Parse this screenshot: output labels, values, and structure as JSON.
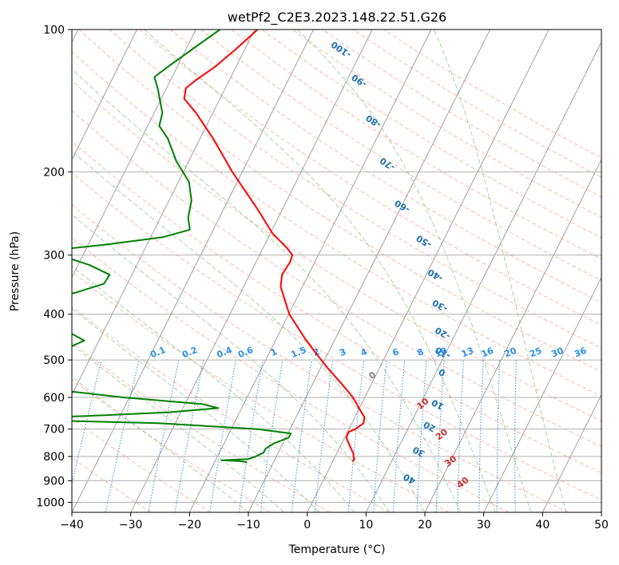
{
  "chart_data": {
    "type": "line",
    "subtype": "skew-t log-p diagram",
    "title": "wetPf2_C2E3.2023.148.22.51.G26",
    "xlabel": "Temperature (°C)",
    "ylabel": "Pressure (hPa)",
    "xlim": [
      -40,
      50
    ],
    "ylim": [
      1050,
      100
    ],
    "y_scale": "log",
    "grid": true,
    "x_ticks": [
      "−40",
      "−30",
      "−20",
      "−10",
      "0",
      "10",
      "20",
      "30",
      "40",
      "50"
    ],
    "y_ticks": [
      "100",
      "200",
      "300",
      "400",
      "500",
      "600",
      "700",
      "800",
      "900",
      "1000"
    ],
    "x_tick_values": [
      -40,
      -30,
      -20,
      -10,
      0,
      10,
      20,
      30,
      40,
      50
    ],
    "y_tick_values": [
      100,
      200,
      300,
      400,
      500,
      600,
      700,
      800,
      900,
      1000
    ],
    "colors": {
      "temperature": "#ff0000",
      "dewpoint": "#008000",
      "isotherm": "#a0a0a0",
      "dry_adiabat": "#fa8060",
      "moist_adiabat": "#60b060",
      "mixing_ratio": "#2f8fe0",
      "mixing_label": "#2b8fe8",
      "dry_label": "#1f6fb0",
      "moist_label": "#d03030",
      "moist_label_zero": "#808080",
      "lcl_curve": "#d2b48c"
    },
    "dry_adiabat_labels": [
      "-100",
      "-90",
      "-80",
      "-70",
      "-60",
      "-50",
      "-40",
      "-30",
      "-20",
      "-10",
      "0",
      "10",
      "20",
      "30",
      "40"
    ],
    "dry_adiabat_label_points": [
      {
        "t": -33.6,
        "p": 110
      },
      {
        "t": -27.9,
        "p": 128
      },
      {
        "t": -22.0,
        "p": 156
      },
      {
        "t": -16.0,
        "p": 192
      },
      {
        "t": -9.9,
        "p": 236
      },
      {
        "t": -3.2,
        "p": 280
      },
      {
        "t": 1.6,
        "p": 330
      },
      {
        "t": 5.0,
        "p": 383
      },
      {
        "t": 7.8,
        "p": 438
      },
      {
        "t": 9.5,
        "p": 482
      },
      {
        "t": 11.0,
        "p": 530
      },
      {
        "t": 13.0,
        "p": 620
      },
      {
        "t": 13.5,
        "p": 690
      },
      {
        "t": 13.8,
        "p": 780
      },
      {
        "t": 14.5,
        "p": 890
      }
    ],
    "moist_adiabat_labels": [
      "0",
      "10",
      "20",
      "30",
      "40"
    ],
    "moist_adiabat_label_points": [
      {
        "t": -0.5,
        "p": 540
      },
      {
        "t": 10.5,
        "p": 620
      },
      {
        "t": 16.3,
        "p": 720
      },
      {
        "t": 20.1,
        "p": 820
      },
      {
        "t": 24.0,
        "p": 910
      }
    ],
    "mixing_ratio_labels": [
      "0.1",
      "0.2",
      "0.4",
      "0.6",
      "1",
      "1.5",
      "2",
      "3",
      "4",
      "6",
      "8",
      "10",
      "13",
      "16",
      "20",
      "25",
      "30",
      "36"
    ],
    "mixing_ratio_label_temps": [
      -38.3,
      -32.9,
      -27.0,
      -23.4,
      -18.6,
      -14.4,
      -11.4,
      -6.9,
      -3.3,
      2.1,
      6.3,
      9.8,
      14.3,
      17.7,
      21.6,
      25.9,
      29.6,
      33.5
    ],
    "mixing_ratio_label_pressure": 500,
    "series": [
      {
        "name": "Temperature",
        "color": "#ff0000",
        "points": [
          [
            100,
            -49.5
          ],
          [
            110,
            -51.5
          ],
          [
            120,
            -53.6
          ],
          [
            128,
            -55.7
          ],
          [
            133,
            -56.7
          ],
          [
            140,
            -56.1
          ],
          [
            150,
            -52.9
          ],
          [
            170,
            -47.8
          ],
          [
            200,
            -41.7
          ],
          [
            240,
            -34.2
          ],
          [
            270,
            -29.6
          ],
          [
            290,
            -25.9
          ],
          [
            300,
            -24.4
          ],
          [
            310,
            -24.2
          ],
          [
            330,
            -24.5
          ],
          [
            350,
            -23.7
          ],
          [
            400,
            -19.9
          ],
          [
            450,
            -15.2
          ],
          [
            480,
            -12.4
          ],
          [
            520,
            -8.8
          ],
          [
            560,
            -5.2
          ],
          [
            600,
            -2.0
          ],
          [
            640,
            0.4
          ],
          [
            660,
            1.6
          ],
          [
            680,
            2.0
          ],
          [
            700,
            1.1
          ],
          [
            710,
            0.2
          ],
          [
            730,
            0.3
          ],
          [
            760,
            1.6
          ],
          [
            790,
            2.9
          ],
          [
            800,
            3.1
          ],
          [
            810,
            3.5
          ],
          [
            820,
            3.4
          ]
        ]
      },
      {
        "name": "Dewpoint",
        "color": "#008000",
        "points": [
          [
            100,
            -55.9
          ],
          [
            110,
            -58.9
          ],
          [
            120,
            -61.6
          ],
          [
            126,
            -63.0
          ],
          [
            133,
            -61.5
          ],
          [
            150,
            -58.6
          ],
          [
            160,
            -58.0
          ],
          [
            170,
            -55.5
          ],
          [
            190,
            -52.1
          ],
          [
            210,
            -48.2
          ],
          [
            230,
            -46.2
          ],
          [
            250,
            -45.3
          ],
          [
            265,
            -44.0
          ],
          [
            275,
            -48.0
          ],
          [
            285,
            -57.0
          ],
          [
            292,
            -64.5
          ],
          [
            300,
            -64.0
          ],
          [
            315,
            -58.0
          ],
          [
            330,
            -53.8
          ],
          [
            345,
            -54.0
          ],
          [
            360,
            -58.0
          ],
          [
            370,
            -61.5
          ],
          [
            380,
            -62.0
          ],
          [
            395,
            -58.5
          ],
          [
            410,
            -57.0
          ],
          [
            425,
            -57.5
          ],
          [
            440,
            -55.2
          ],
          [
            455,
            -52.5
          ],
          [
            470,
            -54.5
          ],
          [
            490,
            -58.5
          ],
          [
            510,
            -60.5
          ],
          [
            525,
            -57.5
          ],
          [
            540,
            -56.5
          ],
          [
            555,
            -61.0
          ],
          [
            575,
            -55.0
          ],
          [
            600,
            -41.0
          ],
          [
            620,
            -27.0
          ],
          [
            632,
            -24.0
          ],
          [
            645,
            -32.0
          ],
          [
            657,
            -46.0
          ],
          [
            663,
            -57.5
          ],
          [
            667,
            -61.5
          ],
          [
            680,
            -33.0
          ],
          [
            700,
            -15.5
          ],
          [
            715,
            -9.5
          ],
          [
            730,
            -9.5
          ],
          [
            750,
            -11.5
          ],
          [
            770,
            -12.5
          ],
          [
            785,
            -12.5
          ],
          [
            800,
            -13.5
          ],
          [
            810,
            -14.5
          ],
          [
            815,
            -19.0
          ],
          [
            818,
            -16.0
          ],
          [
            822,
            -14.5
          ]
        ]
      }
    ]
  }
}
